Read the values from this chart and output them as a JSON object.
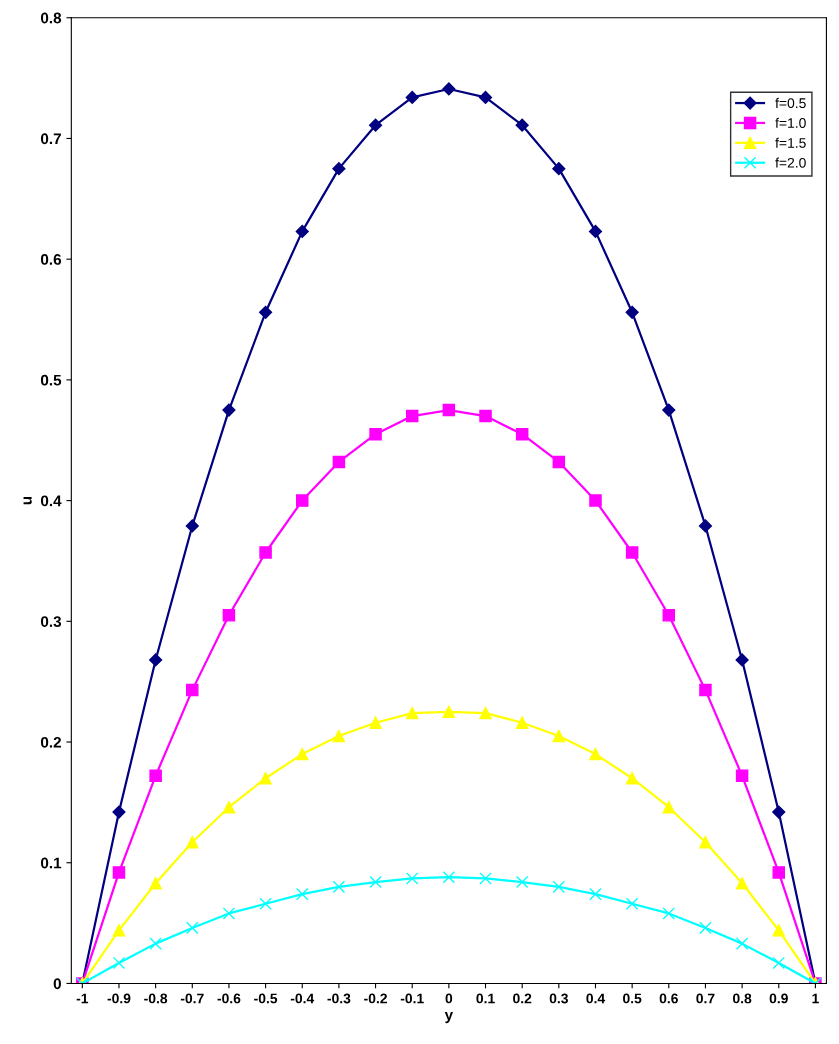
{
  "chart_data": {
    "type": "line",
    "xlabel": "y",
    "ylabel": "u",
    "categories": [
      "-1",
      "-0.9",
      "-0.8",
      "-0.7",
      "-0.6",
      "-0.5",
      "-0.4",
      "-0.3",
      "-0.2",
      "-0.1",
      "0",
      "0.1",
      "0.2",
      "0.3",
      "0.4",
      "0.5",
      "0.6",
      "0.7",
      "0.8",
      "0.9",
      "1"
    ],
    "series": [
      {
        "name": "f=0.5",
        "color": "#000080",
        "marker": "diamond",
        "values": [
          0,
          0.142,
          0.268,
          0.379,
          0.475,
          0.556,
          0.623,
          0.675,
          0.711,
          0.734,
          0.741,
          0.734,
          0.711,
          0.675,
          0.623,
          0.556,
          0.475,
          0.379,
          0.268,
          0.142,
          0
        ]
      },
      {
        "name": "f=1.0",
        "color": "#ff00ff",
        "marker": "square",
        "values": [
          0,
          0.092,
          0.172,
          0.243,
          0.305,
          0.357,
          0.4,
          0.432,
          0.455,
          0.47,
          0.475,
          0.47,
          0.455,
          0.432,
          0.4,
          0.357,
          0.305,
          0.243,
          0.172,
          0.092,
          0
        ]
      },
      {
        "name": "f=1.5",
        "color": "#ffff00",
        "marker": "triangle",
        "values": [
          0,
          0.044,
          0.083,
          0.117,
          0.146,
          0.17,
          0.19,
          0.205,
          0.216,
          0.224,
          0.225,
          0.224,
          0.216,
          0.205,
          0.19,
          0.17,
          0.146,
          0.117,
          0.083,
          0.044,
          0
        ]
      },
      {
        "name": "f=2.0",
        "color": "#00ffff",
        "marker": "cross",
        "values": [
          0,
          0.017,
          0.033,
          0.046,
          0.058,
          0.066,
          0.074,
          0.08,
          0.084,
          0.087,
          0.088,
          0.087,
          0.084,
          0.08,
          0.074,
          0.066,
          0.058,
          0.046,
          0.033,
          0.017,
          0
        ]
      }
    ],
    "ylim": [
      0,
      0.8
    ],
    "yticks": [
      0,
      0.1,
      0.2,
      0.3,
      0.4,
      0.5,
      0.6,
      0.7,
      0.8
    ],
    "legend": "top right",
    "grid": false,
    "line_style": "solid"
  }
}
